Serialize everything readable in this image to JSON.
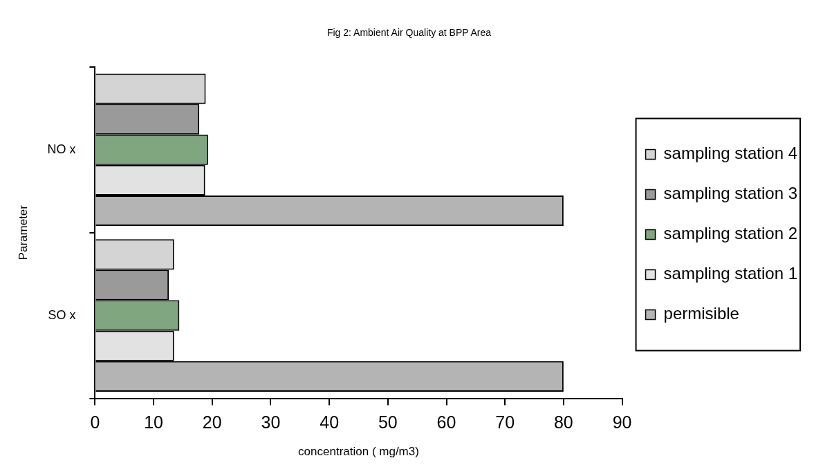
{
  "chart_data": {
    "type": "bar",
    "orientation": "horizontal",
    "title": "Fig 2: Ambient Air Quality at BPP Area",
    "xlabel": "concentration ( mg/m3)",
    "ylabel": "Parameter",
    "categories": [
      "NO x",
      "SO x"
    ],
    "series": [
      {
        "name": "sampling station 4",
        "color": "#d4d4d4",
        "values": [
          18.9,
          13.5
        ]
      },
      {
        "name": "sampling station 3",
        "color": "#9a9a9a",
        "values": [
          17.8,
          12.6
        ]
      },
      {
        "name": "sampling station 2",
        "color": "#7fa67f",
        "values": [
          19.3,
          14.4
        ]
      },
      {
        "name": "sampling station 1",
        "color": "#e2e2e2",
        "values": [
          18.8,
          13.5
        ]
      },
      {
        "name": "permisible",
        "color": "#b4b4b4",
        "values": [
          80,
          80
        ]
      }
    ],
    "xlim": [
      0,
      90
    ],
    "xticks": [
      0,
      10,
      20,
      30,
      40,
      50,
      60,
      70,
      80,
      90
    ],
    "grid": false,
    "legend": "right"
  }
}
